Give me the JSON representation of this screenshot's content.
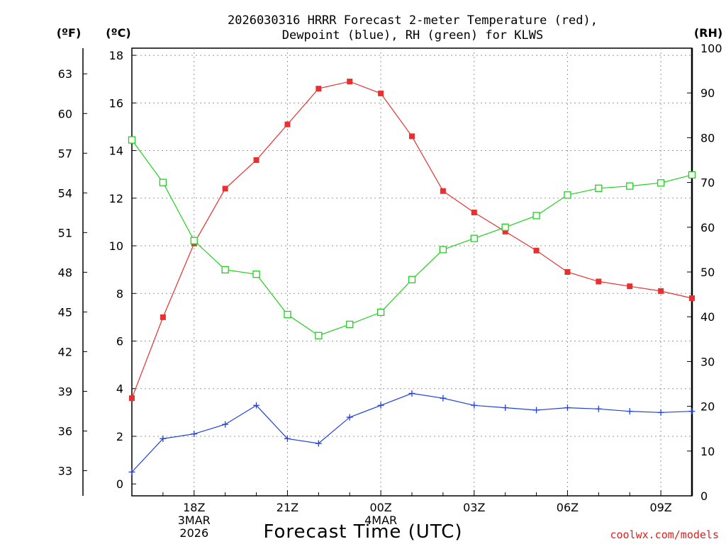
{
  "chart_data": {
    "type": "line",
    "title_line1": "2026030316 HRRR Forecast 2-meter Temperature (red),",
    "title_line2": "Dewpoint (blue), RH (green) for KLWS",
    "left_unit_f": "(ºF)",
    "left_unit_c": "(ºC)",
    "right_unit": "(RH)",
    "xlabel": "Forecast Time (UTC)",
    "credit": "coolwx.com/models",
    "x_range": [
      16,
      34
    ],
    "ylim_c": [
      -0.5,
      18.3
    ],
    "ylim_rh": [
      0,
      100
    ],
    "celsius_ticks": [
      "0",
      "2",
      "4",
      "6",
      "8",
      "10",
      "12",
      "14",
      "16",
      "18"
    ],
    "fahrenheit_ticks": [
      "33",
      "36",
      "39",
      "42",
      "45",
      "48",
      "51",
      "54",
      "57",
      "60",
      "63"
    ],
    "rh_ticks": [
      "0",
      "10",
      "20",
      "30",
      "40",
      "50",
      "60",
      "70",
      "80",
      "90",
      "100"
    ],
    "x_ticks": [
      {
        "x": 18,
        "lines": [
          "18Z",
          "3MAR",
          "2026"
        ]
      },
      {
        "x": 21,
        "lines": [
          "21Z"
        ]
      },
      {
        "x": 24,
        "lines": [
          "00Z",
          "4MAR"
        ]
      },
      {
        "x": 27,
        "lines": [
          "03Z"
        ]
      },
      {
        "x": 30,
        "lines": [
          "06Z"
        ]
      },
      {
        "x": 33,
        "lines": [
          "09Z"
        ]
      }
    ],
    "x_minor": [
      17,
      19,
      20,
      22,
      23,
      25,
      26,
      28,
      29,
      31,
      32
    ],
    "colors": {
      "temperature": "#e83030",
      "dewpoint": "#2040e0",
      "rh": "#20d020",
      "credit": "#e02020"
    },
    "x": [
      16,
      17,
      18,
      19,
      20,
      21,
      22,
      23,
      24,
      25,
      26,
      27,
      28,
      29,
      30,
      31,
      32,
      33,
      34
    ],
    "series": [
      {
        "name": "Temperature",
        "units": "C",
        "color": "#e83030",
        "marker": "filled-square",
        "values": [
          3.6,
          7.0,
          10.1,
          12.4,
          13.6,
          15.1,
          16.6,
          16.9,
          16.4,
          14.6,
          12.3,
          11.4,
          10.6,
          9.8,
          8.9,
          8.5,
          8.3,
          8.1,
          7.8
        ]
      },
      {
        "name": "Dewpoint",
        "units": "C",
        "color": "#2040e0",
        "marker": "plus",
        "values": [
          0.5,
          1.9,
          2.1,
          2.5,
          3.3,
          1.9,
          1.7,
          2.8,
          3.3,
          3.8,
          3.6,
          3.3,
          3.2,
          3.1,
          3.2,
          3.15,
          3.05,
          3.0,
          3.05
        ]
      },
      {
        "name": "RH",
        "units": "%",
        "color": "#20d020",
        "marker": "open-square",
        "values": [
          79.5,
          70.0,
          57.0,
          50.5,
          49.5,
          40.5,
          35.8,
          38.3,
          41.0,
          48.3,
          55.0,
          57.5,
          60.0,
          62.6,
          67.2,
          68.7,
          69.2,
          69.9,
          71.7
        ]
      }
    ]
  }
}
